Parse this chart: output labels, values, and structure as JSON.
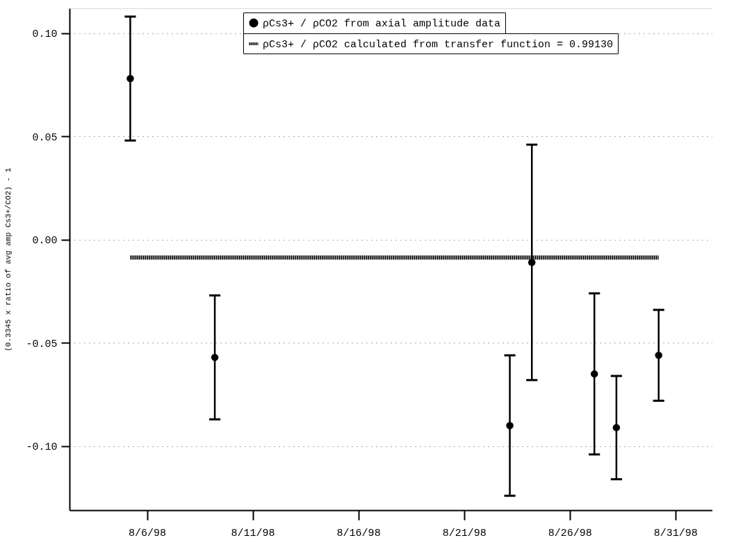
{
  "chart_data": {
    "type": "scatter",
    "ylabel": "(0.3345 x ratio of avg amp Cs3+/CO2) - 1",
    "xlim": [
      "1998-08-02T08:00",
      "1998-09-01T18:00"
    ],
    "xticks": [
      {
        "value": "1998-08-06",
        "label": "8/6/98"
      },
      {
        "value": "1998-08-11",
        "label": "8/11/98"
      },
      {
        "value": "1998-08-16",
        "label": "8/16/98"
      },
      {
        "value": "1998-08-21",
        "label": "8/21/98"
      },
      {
        "value": "1998-08-26",
        "label": "8/26/98"
      },
      {
        "value": "1998-08-31",
        "label": "8/31/98"
      }
    ],
    "ylim": [
      -0.131,
      0.112
    ],
    "yticks": [
      {
        "value": 0.1,
        "label": "0.10"
      },
      {
        "value": 0.05,
        "label": "0.05"
      },
      {
        "value": 0,
        "label": "0.00"
      },
      {
        "value": -0.05,
        "label": "-0.05"
      },
      {
        "value": -0.1,
        "label": "-0.10"
      }
    ],
    "grid": "y",
    "legend": "top right",
    "series": [
      {
        "name": "ρCs3+ / ρCO2 from axial amplitude data",
        "marker": "circle",
        "color": "#000000",
        "x": [
          "1998-08-05T05:00",
          "1998-08-09T05:00",
          "1998-08-23T04:00",
          "1998-08-24T05:00",
          "1998-08-27T04:00",
          "1998-08-28T05:00",
          "1998-08-30T05:00"
        ],
        "values": [
          0.078,
          -0.057,
          -0.09,
          -0.011,
          -0.065,
          -0.091,
          -0.056
        ],
        "errors": [
          0.03,
          0.03,
          0.034,
          0.057,
          0.039,
          0.025,
          0.022
        ]
      },
      {
        "name": "ρCs3+ / ρCO2 calculated from transfer function = 0.99130",
        "type": "line",
        "line_style": "dotted",
        "color": "#000000",
        "x": [
          "1998-08-05T05:00",
          "1998-08-30T05:00"
        ],
        "values": [
          -0.0087,
          -0.0087
        ]
      }
    ]
  }
}
